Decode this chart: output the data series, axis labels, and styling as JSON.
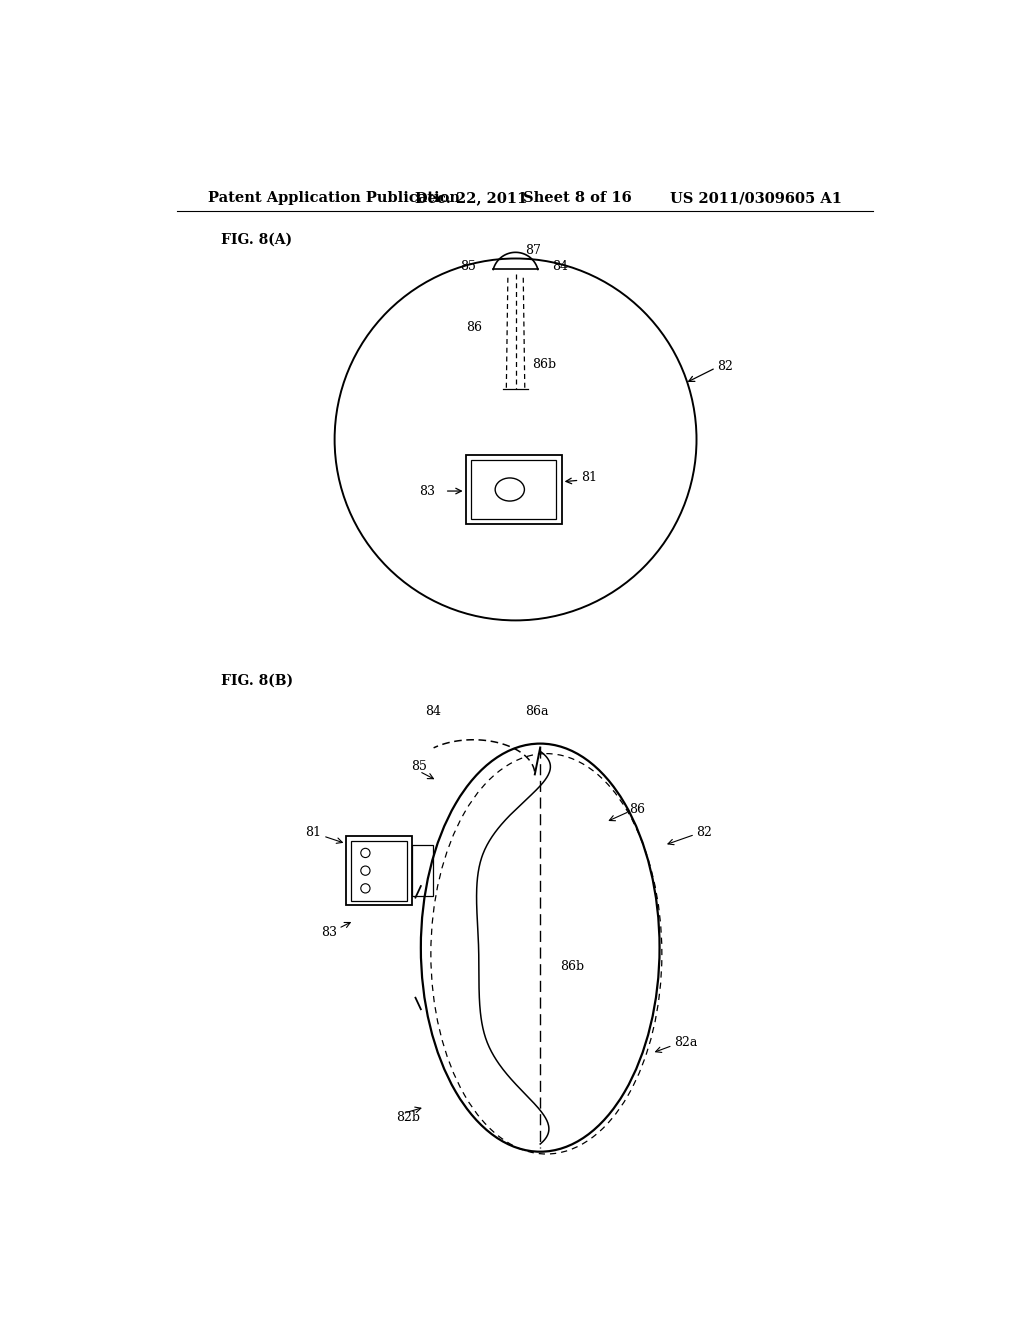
{
  "header": "Patent Application Publication",
  "header_date": "Dec. 22, 2011",
  "header_sheet": "Sheet 8 of 16",
  "header_patent": "US 2011/0309605 A1",
  "fig_a_label": "FIG. 8(A)",
  "fig_b_label": "FIG. 8(B)",
  "bg_color": "#ffffff",
  "lc": "#000000",
  "fs_header": 10.5,
  "fs_fig": 10,
  "fs_ref": 9
}
